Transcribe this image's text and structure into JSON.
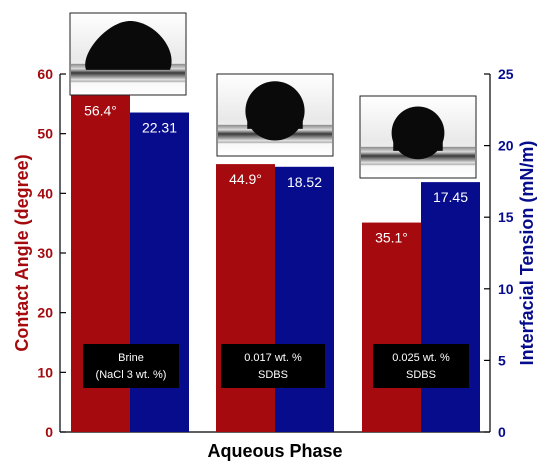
{
  "chart_data": {
    "type": "bar",
    "categories": [
      [
        "Brine",
        "(NaCl 3 wt. %)"
      ],
      [
        "0.017 wt. %",
        "SDBS"
      ],
      [
        "0.025 wt. %",
        "SDBS"
      ]
    ],
    "series": [
      {
        "name": "Contact Angle",
        "axis": "left",
        "color": "#a50a0f",
        "values": [
          56.4,
          44.9,
          35.1
        ],
        "value_labels": [
          "56.4°",
          "44.9°",
          "35.1°"
        ]
      },
      {
        "name": "Interfacial Tension",
        "axis": "right",
        "color": "#060c8c",
        "values": [
          22.31,
          18.52,
          17.45
        ],
        "value_labels": [
          "22.31",
          "18.52",
          "17.45"
        ]
      }
    ],
    "xlabel": "Aqueous Phase",
    "ylabel_left": "Contact Angle (degree)",
    "ylabel_right": "Interfacial Tension (mN/m)",
    "ylim_left": [
      0,
      60
    ],
    "ylim_right": [
      0,
      25
    ],
    "yticks_left": [
      "0",
      "10",
      "20",
      "30",
      "40",
      "50",
      "60"
    ],
    "yticks_right": [
      "0",
      "5",
      "10",
      "15",
      "20",
      "25"
    ],
    "grid": false,
    "left_axis_color": "#a50a0f",
    "right_axis_color": "#060c8c",
    "inset_images": [
      "droplet-photo",
      "droplet-photo",
      "droplet-photo"
    ]
  }
}
